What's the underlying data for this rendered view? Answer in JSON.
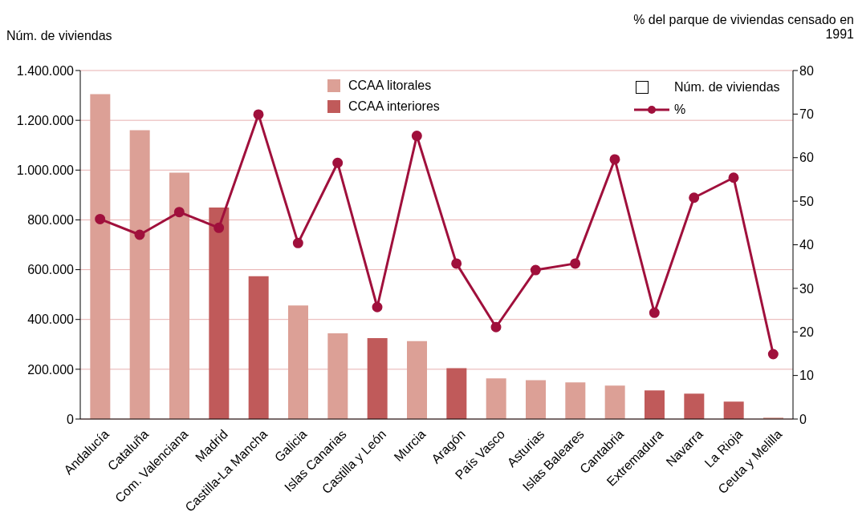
{
  "chart_data": {
    "type": "bar",
    "ylabel": "Núm. de viviendas",
    "y2label": "% del parque de viviendas censado en 1991",
    "categories": [
      "Andalucía",
      "Cataluña",
      "Com. Valenciana",
      "Madrid",
      "Castilla-La Mancha",
      "Galicia",
      "Islas Canarias",
      "Castilla y León",
      "Murcia",
      "Aragón",
      "País Vasco",
      "Asturias",
      "Islas Baleares",
      "Cantabria",
      "Extremadura",
      "Navarra",
      "La Rioja",
      "Ceuta y Melilla"
    ],
    "series": [
      {
        "name": "CCAA litorales",
        "color": "#dca096",
        "values": [
          1305000,
          1160000,
          990000,
          null,
          null,
          456000,
          344000,
          null,
          313000,
          null,
          163000,
          156000,
          147000,
          134000,
          null,
          null,
          null,
          6000
        ]
      },
      {
        "name": "CCAA interiores",
        "color": "#c05a5a",
        "values": [
          null,
          null,
          null,
          850000,
          574000,
          null,
          null,
          325000,
          null,
          204000,
          null,
          null,
          null,
          null,
          115000,
          102000,
          70000,
          null
        ]
      },
      {
        "name": "%",
        "type": "line",
        "axis": "y2",
        "color": "#a0103c",
        "values": [
          45.9,
          42.3,
          47.5,
          43.9,
          69.9,
          40.4,
          58.8,
          25.7,
          65.0,
          35.7,
          21.1,
          34.2,
          35.7,
          59.6,
          24.4,
          50.8,
          55.4,
          14.9
        ]
      }
    ],
    "stacked": true,
    "ylim": [
      0,
      1400000
    ],
    "yticks": [
      0,
      {
        "value": 200000,
        "label": "200.000"
      },
      {
        "value": 400000,
        "label": "400.000"
      },
      {
        "value": 600000,
        "label": "600.000"
      },
      {
        "value": 800000,
        "label": "800.000"
      },
      {
        "value": 1000000,
        "label": "1.000.000"
      },
      {
        "value": 1200000,
        "label": "1.200.000"
      },
      {
        "value": 1400000,
        "label": "1.400.000"
      }
    ],
    "y2lim": [
      0,
      80
    ],
    "y2ticks": [
      0,
      10,
      20,
      30,
      40,
      50,
      60,
      70,
      80
    ],
    "grid": "y",
    "marker": "circle",
    "line_style": "solid",
    "legend": "top",
    "annotations": [
      "Núm. de viviendas"
    ]
  }
}
